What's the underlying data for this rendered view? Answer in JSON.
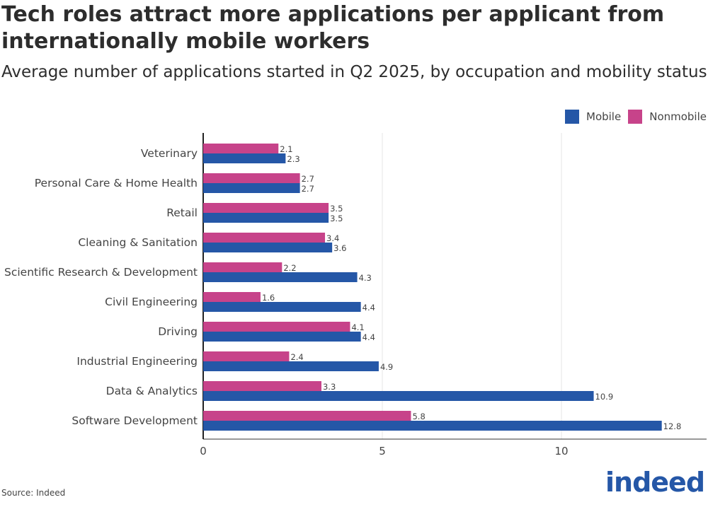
{
  "title": "Tech roles attract more applications per applicant from internationally mobile workers",
  "subtitle": "Average number of applications started in Q2 2025, by occupation and mobility status",
  "source": "Source: Indeed",
  "logo_text": "indeed",
  "colors": {
    "mobile": "#2557a7",
    "nonmobile": "#c7438a"
  },
  "chart_data": {
    "type": "bar",
    "orientation": "horizontal",
    "categories": [
      "Veterinary",
      "Personal Care & Home Health",
      "Retail",
      "Cleaning & Sanitation",
      "Scientific Research & Development",
      "Civil Engineering",
      "Driving",
      "Industrial Engineering",
      "Data & Analytics",
      "Software Development"
    ],
    "series": [
      {
        "name": "Nonmobile",
        "color": "#c7438a",
        "values": [
          2.1,
          2.7,
          3.5,
          3.4,
          2.2,
          1.6,
          4.1,
          2.4,
          3.3,
          5.8
        ]
      },
      {
        "name": "Mobile",
        "color": "#2557a7",
        "values": [
          2.3,
          2.7,
          3.5,
          3.6,
          4.3,
          4.4,
          4.4,
          4.9,
          10.9,
          12.8
        ]
      }
    ],
    "xlim": [
      0,
      14
    ],
    "xticks": [
      "0",
      "5",
      "10"
    ],
    "xtick_values": [
      0,
      5,
      10
    ],
    "legend": [
      "Mobile",
      "Nonmobile"
    ],
    "legend_position": "top-right",
    "grid": "vertical",
    "data_labels": true
  }
}
